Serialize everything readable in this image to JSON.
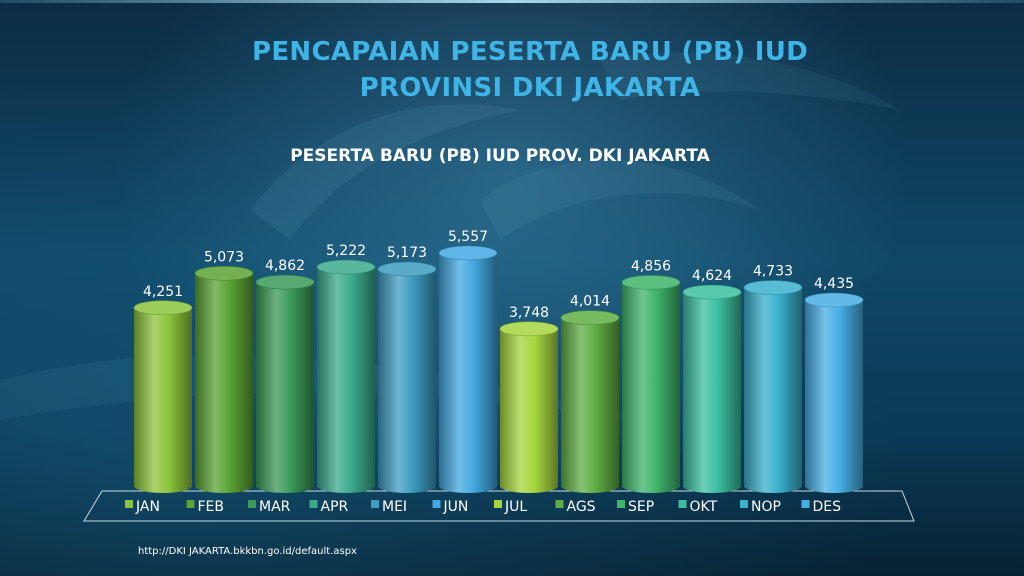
{
  "slide": {
    "title_line1": "PENCAPAIAN PESERTA BARU (PB) IUD",
    "title_line2": "PROVINSI DKI JAKARTA",
    "source": "http://DKI JAKARTA.bkkbn.go.id/default.aspx"
  },
  "chart_data": {
    "type": "bar",
    "title": "PESERTA BARU (PB) IUD PROV. DKI JAKARTA",
    "categories": [
      "JAN",
      "FEB",
      "MAR",
      "APR",
      "MEI",
      "JUN",
      "JUL",
      "AGS",
      "SEP",
      "OKT",
      "NOP",
      "DES"
    ],
    "values": [
      4251,
      5073,
      4862,
      5222,
      5173,
      5557,
      3748,
      4014,
      4856,
      4624,
      4733,
      4435
    ],
    "value_labels": [
      "4,251",
      "5,073",
      "4,862",
      "5,222",
      "5,173",
      "5,557",
      "3,748",
      "4,014",
      "4,856",
      "4,624",
      "4,733",
      "4,435"
    ],
    "colors": [
      "#8cc43c",
      "#5aa334",
      "#3b9a58",
      "#3aaa8c",
      "#3d9cc0",
      "#43a8e0",
      "#a6d63f",
      "#5fae43",
      "#3fb46a",
      "#3cbfa0",
      "#3ab0cc",
      "#47aee4"
    ],
    "xlabel": "",
    "ylabel": "",
    "legend_position": "bottom",
    "grid": false,
    "style": "3d-cylinder"
  }
}
